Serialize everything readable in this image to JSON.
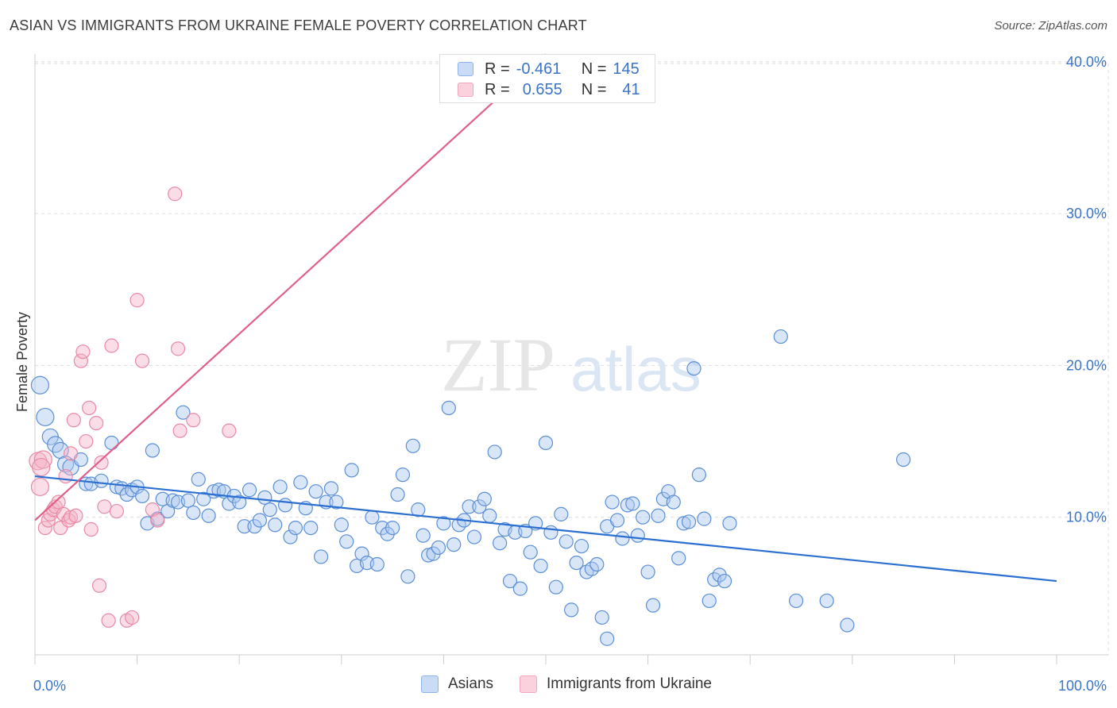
{
  "title": "ASIAN VS IMMIGRANTS FROM UKRAINE FEMALE POVERTY CORRELATION CHART",
  "source": "Source: ZipAtlas.com",
  "watermark": {
    "zip": "ZIP",
    "atlas": "atlas"
  },
  "legend": {
    "rows": [
      {
        "r_label": "R =",
        "r_value": "-0.461",
        "n_label": "N =",
        "n_value": "145",
        "color": "#8fb4e8",
        "fill": "#c9dbf5"
      },
      {
        "r_label": "R =",
        "r_value": "0.655",
        "n_label": "N =",
        "n_value": "41",
        "color": "#f2a7bd",
        "fill": "#fad1dd"
      }
    ]
  },
  "bottom_legend": [
    {
      "label": "Asians",
      "color": "#8fb4e8",
      "fill": "#c9dbf5"
    },
    {
      "label": "Immigrants from Ukraine",
      "color": "#f2a7bd",
      "fill": "#fad1dd"
    }
  ],
  "chart_data": {
    "type": "scatter",
    "ylabel": "Female Poverty",
    "xlim": [
      0,
      100
    ],
    "ylim": [
      0,
      40
    ],
    "x_tick_labels": [
      "0.0%",
      "100.0%"
    ],
    "y_ticks": [
      10,
      20,
      30,
      40
    ],
    "y_tick_labels": [
      "10.0%",
      "20.0%",
      "30.0%",
      "40.0%"
    ],
    "grid": true,
    "series": [
      {
        "name": "Asians",
        "color": "#5b8fd6",
        "fill": "rgba(170,200,240,0.45)",
        "trend": {
          "x": [
            0,
            100
          ],
          "y": [
            12.7,
            5.8
          ],
          "color": "#2a6fd1"
        },
        "points": [
          [
            0.5,
            18.7
          ],
          [
            1,
            16.6
          ],
          [
            1.5,
            15.3
          ],
          [
            2,
            14.8
          ],
          [
            2.5,
            14.4
          ],
          [
            3,
            13.5
          ],
          [
            3.5,
            13.3
          ],
          [
            4.5,
            13.8
          ],
          [
            5,
            12.2
          ],
          [
            5.5,
            12.2
          ],
          [
            6.5,
            12.4
          ],
          [
            7.5,
            14.9
          ],
          [
            8,
            12.0
          ],
          [
            8.5,
            11.9
          ],
          [
            9,
            11.5
          ],
          [
            9.5,
            11.8
          ],
          [
            10,
            12.0
          ],
          [
            10.5,
            11.4
          ],
          [
            11,
            9.6
          ],
          [
            11.5,
            14.4
          ],
          [
            12,
            9.9
          ],
          [
            12.5,
            11.2
          ],
          [
            13,
            10.4
          ],
          [
            13.5,
            11.1
          ],
          [
            14,
            11.0
          ],
          [
            14.5,
            16.9
          ],
          [
            15,
            11.1
          ],
          [
            15.5,
            10.3
          ],
          [
            16,
            12.5
          ],
          [
            16.5,
            11.2
          ],
          [
            17,
            10.1
          ],
          [
            17.5,
            11.7
          ],
          [
            18,
            11.8
          ],
          [
            18.5,
            11.7
          ],
          [
            19,
            10.9
          ],
          [
            19.5,
            11.4
          ],
          [
            20,
            11.0
          ],
          [
            20.5,
            9.4
          ],
          [
            21,
            11.8
          ],
          [
            21.5,
            9.4
          ],
          [
            22,
            9.8
          ],
          [
            22.5,
            11.3
          ],
          [
            23,
            10.5
          ],
          [
            23.5,
            9.5
          ],
          [
            24,
            12.0
          ],
          [
            24.5,
            10.8
          ],
          [
            25,
            8.7
          ],
          [
            25.5,
            9.3
          ],
          [
            26,
            12.3
          ],
          [
            26.5,
            10.6
          ],
          [
            27,
            9.3
          ],
          [
            27.5,
            11.7
          ],
          [
            28,
            7.4
          ],
          [
            28.5,
            11.0
          ],
          [
            29,
            11.9
          ],
          [
            29.5,
            11.0
          ],
          [
            30,
            9.5
          ],
          [
            30.5,
            8.4
          ],
          [
            31,
            13.1
          ],
          [
            31.5,
            6.8
          ],
          [
            32,
            7.6
          ],
          [
            32.5,
            7.0
          ],
          [
            33,
            10.0
          ],
          [
            33.5,
            6.9
          ],
          [
            34,
            9.3
          ],
          [
            34.5,
            8.9
          ],
          [
            35,
            9.3
          ],
          [
            35.5,
            11.5
          ],
          [
            36,
            12.8
          ],
          [
            36.5,
            6.1
          ],
          [
            37,
            14.7
          ],
          [
            37.5,
            10.5
          ],
          [
            38,
            8.8
          ],
          [
            38.5,
            7.5
          ],
          [
            39,
            7.6
          ],
          [
            39.5,
            8.0
          ],
          [
            40,
            9.6
          ],
          [
            40.5,
            17.2
          ],
          [
            41,
            8.2
          ],
          [
            41.5,
            9.5
          ],
          [
            42,
            9.8
          ],
          [
            42.5,
            10.7
          ],
          [
            43,
            8.7
          ],
          [
            43.5,
            10.7
          ],
          [
            44,
            11.2
          ],
          [
            44.5,
            10.1
          ],
          [
            45,
            14.3
          ],
          [
            45.5,
            8.3
          ],
          [
            46,
            9.2
          ],
          [
            46.5,
            5.8
          ],
          [
            47,
            9.0
          ],
          [
            47.5,
            5.3
          ],
          [
            48,
            9.1
          ],
          [
            48.5,
            7.7
          ],
          [
            49,
            9.6
          ],
          [
            49.5,
            6.8
          ],
          [
            50,
            14.9
          ],
          [
            50.5,
            9.0
          ],
          [
            51,
            5.4
          ],
          [
            51.5,
            10.2
          ],
          [
            52,
            8.4
          ],
          [
            52.5,
            3.9
          ],
          [
            53,
            7.0
          ],
          [
            53.5,
            8.1
          ],
          [
            54,
            6.4
          ],
          [
            54.5,
            6.6
          ],
          [
            55,
            6.9
          ],
          [
            55.5,
            3.4
          ],
          [
            56,
            9.4
          ],
          [
            56.5,
            11.0
          ],
          [
            57,
            9.8
          ],
          [
            57.5,
            8.6
          ],
          [
            58,
            10.8
          ],
          [
            58.5,
            10.9
          ],
          [
            59,
            8.8
          ],
          [
            59.5,
            10.0
          ],
          [
            60,
            6.4
          ],
          [
            60.5,
            4.2
          ],
          [
            61,
            10.1
          ],
          [
            61.5,
            11.2
          ],
          [
            62,
            11.7
          ],
          [
            62.5,
            11.0
          ],
          [
            63,
            7.3
          ],
          [
            63.5,
            9.6
          ],
          [
            64,
            9.7
          ],
          [
            64.5,
            19.8
          ],
          [
            65,
            12.8
          ],
          [
            65.5,
            9.9
          ],
          [
            66,
            4.5
          ],
          [
            66.5,
            5.9
          ],
          [
            67,
            6.2
          ],
          [
            67.5,
            5.8
          ],
          [
            68,
            9.6
          ],
          [
            73,
            21.9
          ],
          [
            74.5,
            4.5
          ],
          [
            77.5,
            4.5
          ],
          [
            79.5,
            2.9
          ],
          [
            85,
            13.8
          ],
          [
            56,
            2.0
          ]
        ]
      },
      {
        "name": "Immigrants from Ukraine",
        "color": "#e88aa7",
        "fill": "rgba(245,180,200,0.45)",
        "trend": {
          "x": [
            0,
            50
          ],
          "y": [
            9.8,
            40.5
          ],
          "color": "#e0608a"
        },
        "points": [
          [
            0.3,
            13.7
          ],
          [
            0.5,
            12.0
          ],
          [
            0.8,
            13.8
          ],
          [
            1,
            9.3
          ],
          [
            1.3,
            9.8
          ],
          [
            1.5,
            10.2
          ],
          [
            1.8,
            10.5
          ],
          [
            2,
            10.7
          ],
          [
            2.3,
            11.0
          ],
          [
            2.5,
            9.3
          ],
          [
            2.8,
            10.2
          ],
          [
            3,
            12.7
          ],
          [
            3.3,
            9.8
          ],
          [
            3.5,
            10.0
          ],
          [
            3.8,
            16.4
          ],
          [
            4,
            10.1
          ],
          [
            4.5,
            20.3
          ],
          [
            4.7,
            20.9
          ],
          [
            5,
            15.0
          ],
          [
            5.3,
            17.2
          ],
          [
            5.5,
            9.2
          ],
          [
            6,
            16.2
          ],
          [
            6.3,
            5.5
          ],
          [
            6.5,
            13.6
          ],
          [
            6.8,
            10.7
          ],
          [
            7.2,
            3.2
          ],
          [
            7.5,
            21.3
          ],
          [
            8,
            10.4
          ],
          [
            9,
            3.2
          ],
          [
            9.5,
            3.4
          ],
          [
            10,
            24.3
          ],
          [
            10.5,
            20.3
          ],
          [
            11.5,
            10.5
          ],
          [
            12,
            9.8
          ],
          [
            13.7,
            31.3
          ],
          [
            14,
            21.1
          ],
          [
            14.2,
            15.7
          ],
          [
            15.5,
            16.4
          ],
          [
            19,
            15.7
          ],
          [
            3.5,
            14.2
          ],
          [
            0.6,
            13.3
          ]
        ]
      }
    ]
  }
}
